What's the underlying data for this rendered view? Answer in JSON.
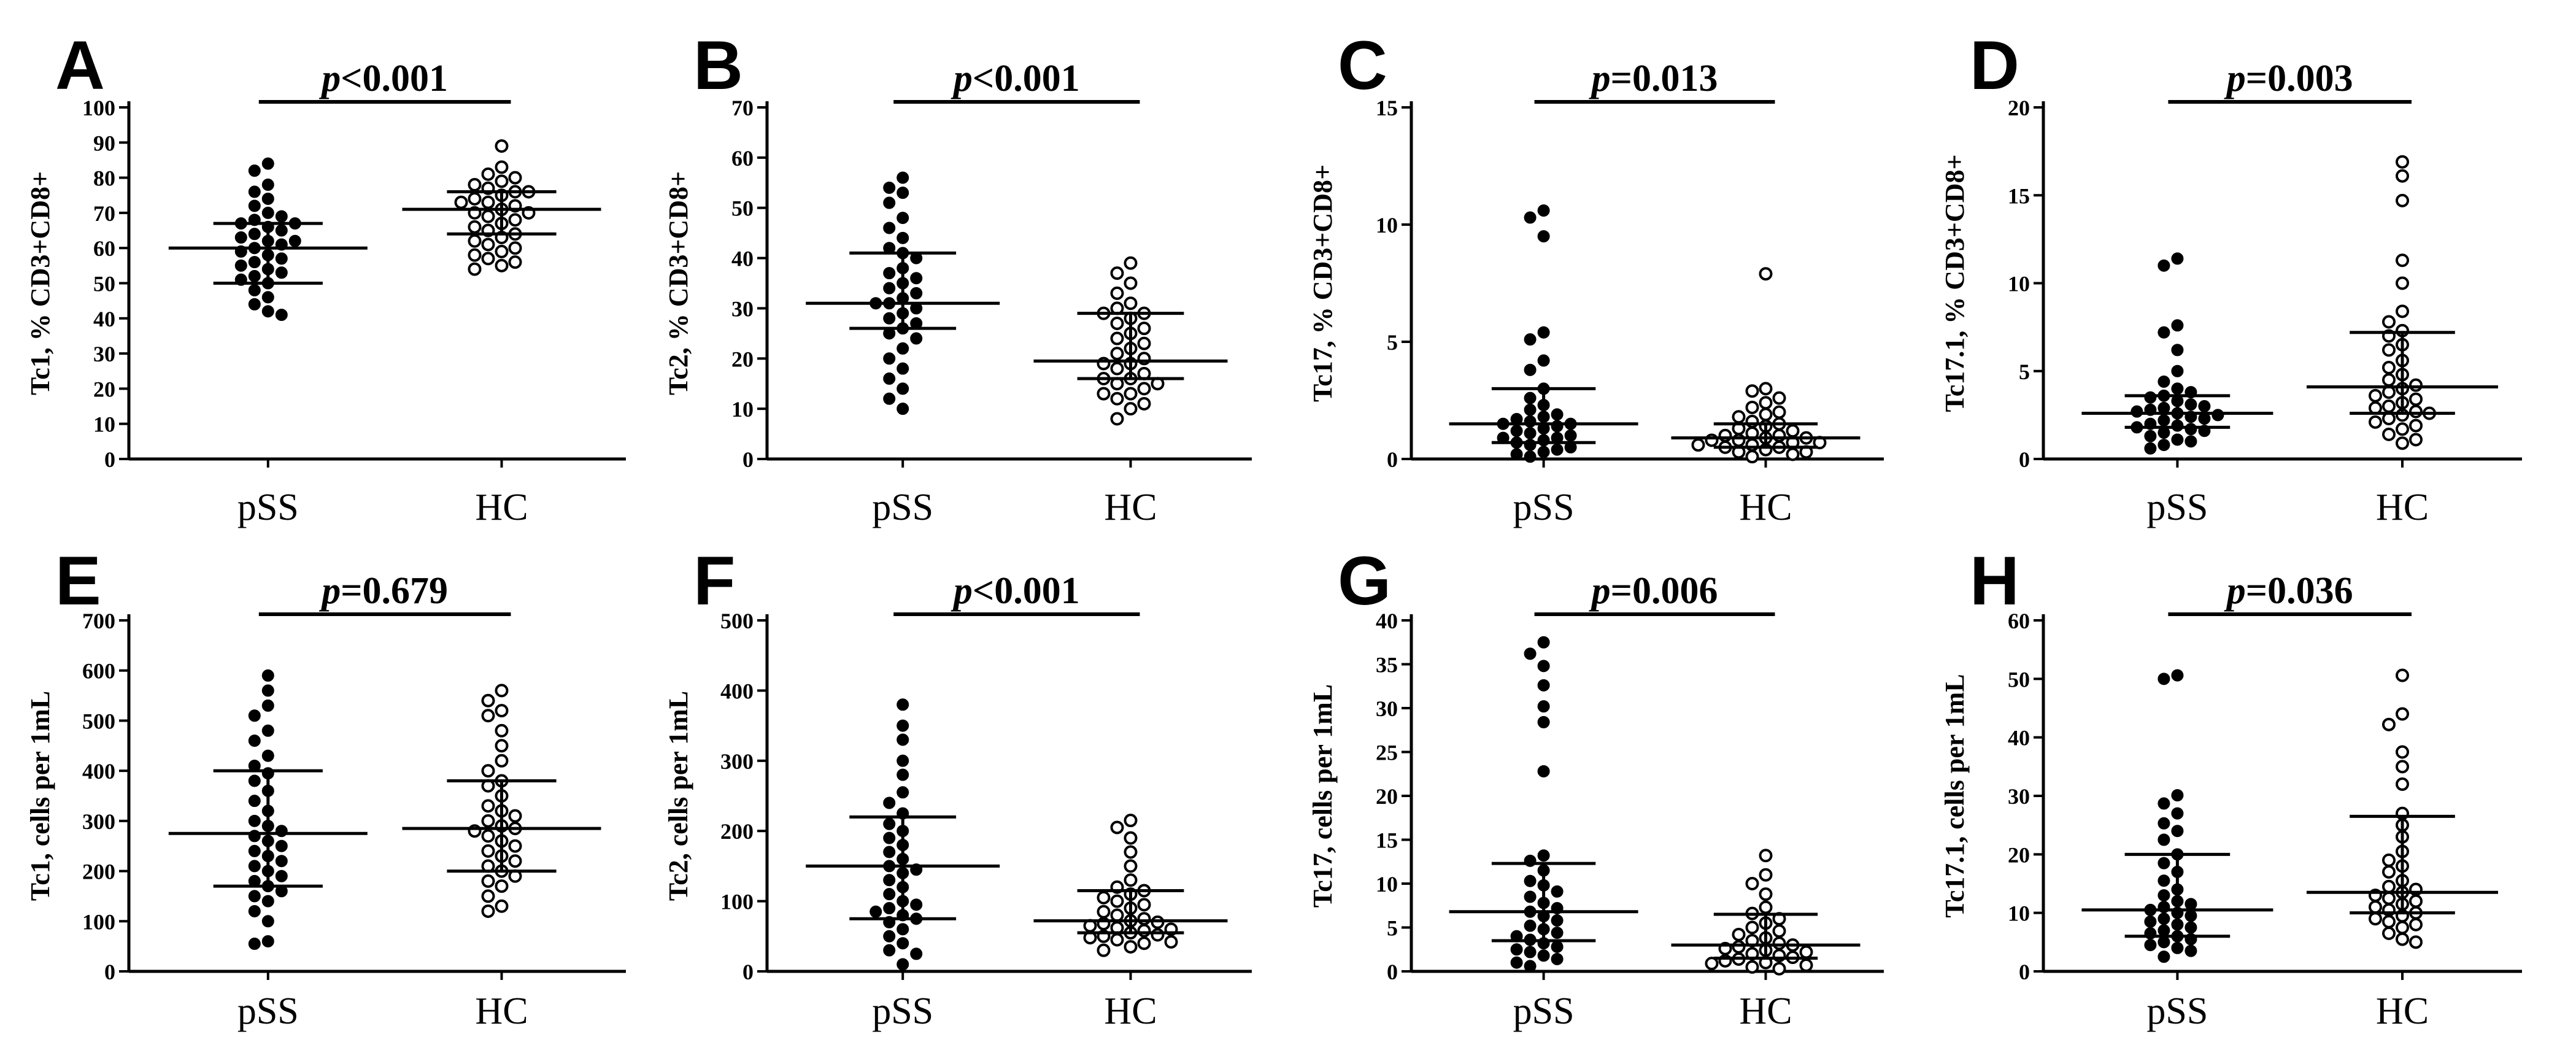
{
  "chart_data": [
    {
      "type": "scatter",
      "panel_label": "A",
      "ylabel": "Tc1, % CD3+CD8+",
      "ylim": [
        0,
        100
      ],
      "yticks": [
        0,
        10,
        20,
        30,
        40,
        50,
        60,
        70,
        80,
        90,
        100
      ],
      "categories": [
        "pSS",
        "HC"
      ],
      "p_prefix": "p",
      "p_rest": "<0.001",
      "series": [
        {
          "name": "pSS",
          "marker": "filled",
          "median": 60,
          "iqr": [
            50,
            67
          ],
          "values": [
            84,
            82,
            78,
            76,
            74,
            72,
            70,
            69,
            68,
            67,
            67,
            66,
            65,
            64,
            63,
            62,
            62,
            61,
            60,
            59,
            58,
            57,
            56,
            55,
            54,
            53,
            52,
            51,
            50,
            48,
            46,
            44,
            42,
            41
          ]
        },
        {
          "name": "HC",
          "marker": "open",
          "median": 71,
          "iqr": [
            64,
            76
          ],
          "values": [
            89,
            83,
            81,
            80,
            79,
            78,
            77,
            76,
            76,
            75,
            74,
            73,
            73,
            72,
            71,
            70,
            70,
            69,
            68,
            67,
            66,
            65,
            64,
            63,
            62,
            61,
            60,
            59,
            58,
            57,
            56,
            55,
            54
          ]
        }
      ]
    },
    {
      "type": "scatter",
      "panel_label": "B",
      "ylabel": "Tc2, % CD3+CD8+",
      "ylim": [
        0,
        70
      ],
      "yticks": [
        0,
        10,
        20,
        30,
        40,
        50,
        60,
        70
      ],
      "categories": [
        "pSS",
        "HC"
      ],
      "p_prefix": "p",
      "p_rest": "<0.001",
      "series": [
        {
          "name": "pSS",
          "marker": "filled",
          "median": 31,
          "iqr": [
            26,
            41
          ],
          "values": [
            56,
            54,
            53,
            51,
            48,
            46,
            44,
            42,
            41,
            40,
            38,
            37,
            36,
            35,
            34,
            33,
            32,
            31,
            31,
            30,
            29,
            28,
            27,
            26,
            25,
            24,
            22,
            20,
            18,
            16,
            14,
            12,
            10
          ]
        },
        {
          "name": "HC",
          "marker": "open",
          "median": 19.5,
          "iqr": [
            16,
            29
          ],
          "values": [
            39,
            37,
            35,
            33,
            31,
            30,
            29,
            29,
            28,
            27,
            26,
            25,
            24,
            23,
            22,
            21,
            20,
            19,
            19,
            18,
            17,
            16,
            16,
            15,
            15,
            14,
            13,
            13,
            12,
            11,
            10,
            8
          ]
        }
      ]
    },
    {
      "type": "scatter",
      "panel_label": "C",
      "ylabel": "Tc17, % CD3+CD8+",
      "ylim": [
        0,
        15
      ],
      "yticks": [
        0,
        5,
        10,
        15
      ],
      "categories": [
        "pSS",
        "HC"
      ],
      "p_prefix": "p",
      "p_rest": "=0.013",
      "series": [
        {
          "name": "pSS",
          "marker": "filled",
          "median": 1.5,
          "iqr": [
            0.7,
            3.0
          ],
          "values": [
            10.6,
            10.3,
            9.5,
            5.4,
            5.1,
            4.2,
            3.8,
            3.0,
            2.6,
            2.3,
            2.1,
            1.9,
            1.8,
            1.7,
            1.6,
            1.5,
            1.5,
            1.4,
            1.3,
            1.2,
            1.1,
            1.0,
            0.9,
            0.9,
            0.8,
            0.7,
            0.6,
            0.5,
            0.4,
            0.3,
            0.2,
            0.1
          ]
        },
        {
          "name": "HC",
          "marker": "open",
          "median": 0.9,
          "iqr": [
            0.5,
            1.5
          ],
          "values": [
            7.9,
            3.0,
            2.9,
            2.6,
            2.4,
            2.2,
            2.0,
            1.9,
            1.8,
            1.6,
            1.5,
            1.4,
            1.3,
            1.2,
            1.1,
            1.0,
            1.0,
            0.9,
            0.9,
            0.8,
            0.8,
            0.7,
            0.7,
            0.6,
            0.6,
            0.5,
            0.5,
            0.4,
            0.3,
            0.3,
            0.2,
            0.1
          ]
        }
      ]
    },
    {
      "type": "scatter",
      "panel_label": "D",
      "ylabel": "Tc17.1, % CD3+CD8+",
      "ylim": [
        0,
        20
      ],
      "yticks": [
        0,
        5,
        10,
        15,
        20
      ],
      "categories": [
        "pSS",
        "HC"
      ],
      "p_prefix": "p",
      "p_rest": "=0.003",
      "series": [
        {
          "name": "pSS",
          "marker": "filled",
          "median": 2.6,
          "iqr": [
            1.8,
            3.6
          ],
          "values": [
            11.4,
            11.0,
            7.6,
            7.2,
            6.2,
            5.0,
            4.4,
            4.0,
            3.8,
            3.6,
            3.5,
            3.3,
            3.1,
            3.0,
            2.9,
            2.8,
            2.7,
            2.6,
            2.5,
            2.4,
            2.3,
            2.2,
            2.0,
            1.9,
            1.8,
            1.7,
            1.6,
            1.5,
            1.3,
            1.1,
            1.0,
            0.8,
            0.6
          ]
        },
        {
          "name": "HC",
          "marker": "open",
          "median": 4.1,
          "iqr": [
            2.6,
            7.2
          ],
          "values": [
            16.9,
            16.1,
            14.7,
            11.3,
            10.0,
            8.4,
            7.8,
            7.3,
            7.0,
            6.5,
            6.2,
            5.6,
            5.2,
            4.8,
            4.5,
            4.2,
            4.0,
            3.8,
            3.6,
            3.4,
            3.2,
            3.0,
            2.9,
            2.7,
            2.6,
            2.5,
            2.3,
            2.1,
            1.9,
            1.7,
            1.4,
            1.1,
            0.9
          ]
        }
      ]
    },
    {
      "type": "scatter",
      "panel_label": "E",
      "ylabel": "Tc1, cells per 1mL",
      "ylim": [
        0,
        700
      ],
      "yticks": [
        0,
        100,
        200,
        300,
        400,
        500,
        600,
        700
      ],
      "categories": [
        "pSS",
        "HC"
      ],
      "p_prefix": "p",
      "p_rest": "=0.679",
      "series": [
        {
          "name": "pSS",
          "marker": "filled",
          "median": 275,
          "iqr": [
            170,
            400
          ],
          "values": [
            590,
            560,
            530,
            510,
            480,
            460,
            430,
            410,
            395,
            380,
            360,
            340,
            320,
            300,
            290,
            280,
            270,
            260,
            250,
            240,
            230,
            220,
            210,
            200,
            190,
            180,
            170,
            160,
            150,
            140,
            120,
            100,
            60,
            55
          ]
        },
        {
          "name": "HC",
          "marker": "open",
          "median": 285,
          "iqr": [
            200,
            380
          ],
          "values": [
            560,
            540,
            520,
            510,
            480,
            450,
            420,
            400,
            380,
            370,
            350,
            330,
            320,
            310,
            300,
            290,
            285,
            280,
            270,
            260,
            250,
            240,
            230,
            220,
            210,
            200,
            190,
            180,
            170,
            150,
            130,
            120
          ]
        }
      ]
    },
    {
      "type": "scatter",
      "panel_label": "F",
      "ylabel": "Tc2, cells per 1mL",
      "ylim": [
        0,
        500
      ],
      "yticks": [
        0,
        100,
        200,
        300,
        400,
        500
      ],
      "categories": [
        "pSS",
        "HC"
      ],
      "p_prefix": "p",
      "p_rest": "<0.001",
      "series": [
        {
          "name": "pSS",
          "marker": "filled",
          "median": 150,
          "iqr": [
            75,
            220
          ],
          "values": [
            380,
            350,
            330,
            300,
            280,
            255,
            240,
            225,
            210,
            200,
            190,
            180,
            170,
            160,
            150,
            145,
            140,
            130,
            120,
            110,
            100,
            95,
            90,
            85,
            80,
            75,
            70,
            60,
            50,
            40,
            30,
            25,
            10
          ]
        },
        {
          "name": "HC",
          "marker": "open",
          "median": 72,
          "iqr": [
            55,
            115
          ],
          "values": [
            215,
            205,
            190,
            170,
            150,
            130,
            120,
            115,
            110,
            105,
            100,
            95,
            90,
            85,
            80,
            75,
            72,
            70,
            68,
            65,
            62,
            60,
            58,
            55,
            52,
            50,
            48,
            45,
            42,
            40,
            35,
            30
          ]
        }
      ]
    },
    {
      "type": "scatter",
      "panel_label": "G",
      "ylabel": "Tc17, cells per 1mL",
      "ylim": [
        0,
        40
      ],
      "yticks": [
        0,
        5,
        10,
        15,
        20,
        25,
        30,
        35,
        40
      ],
      "categories": [
        "pSS",
        "HC"
      ],
      "p_prefix": "p",
      "p_rest": "=0.006",
      "series": [
        {
          "name": "pSS",
          "marker": "filled",
          "median": 6.8,
          "iqr": [
            3.5,
            12.3
          ],
          "values": [
            37.5,
            36.2,
            34.8,
            32.6,
            30.2,
            28.4,
            22.8,
            13.2,
            12.6,
            11.5,
            10.3,
            9.8,
            9.1,
            8.5,
            7.8,
            7.2,
            6.8,
            6.3,
            5.8,
            5.2,
            4.8,
            4.4,
            4.0,
            3.6,
            3.2,
            2.8,
            2.5,
            2.2,
            1.8,
            1.4,
            1.0,
            0.6
          ]
        },
        {
          "name": "HC",
          "marker": "open",
          "median": 3.0,
          "iqr": [
            1.5,
            6.5
          ],
          "values": [
            13.2,
            11.0,
            10.0,
            8.8,
            7.3,
            6.6,
            6.0,
            5.5,
            5.0,
            4.6,
            4.2,
            3.8,
            3.5,
            3.2,
            3.0,
            2.8,
            2.6,
            2.4,
            2.2,
            2.0,
            1.8,
            1.6,
            1.4,
            1.2,
            1.0,
            0.9,
            0.7,
            0.5,
            0.3
          ]
        }
      ]
    },
    {
      "type": "scatter",
      "panel_label": "H",
      "ylabel": "Tc17.1, cells per 1mL",
      "ylim": [
        0,
        60
      ],
      "yticks": [
        0,
        10,
        20,
        30,
        40,
        50,
        60
      ],
      "categories": [
        "pSS",
        "HC"
      ],
      "p_prefix": "p",
      "p_rest": "=0.036",
      "series": [
        {
          "name": "pSS",
          "marker": "filled",
          "median": 10.5,
          "iqr": [
            6.0,
            20.0
          ],
          "values": [
            50.6,
            50.0,
            30.1,
            28.7,
            27.0,
            25.3,
            24.0,
            22.5,
            20.0,
            18.5,
            17.0,
            15.5,
            14.0,
            13.0,
            12.0,
            11.5,
            11.0,
            10.5,
            10.0,
            9.5,
            9.0,
            8.5,
            8.0,
            7.5,
            7.0,
            6.5,
            6.0,
            5.5,
            5.0,
            4.5,
            4.0,
            3.5,
            2.5
          ]
        },
        {
          "name": "HC",
          "marker": "open",
          "median": 13.5,
          "iqr": [
            10.0,
            26.5
          ],
          "values": [
            50.6,
            44.0,
            42.2,
            37.5,
            35.0,
            32.0,
            27.0,
            25.0,
            23.0,
            20.5,
            19.0,
            18.0,
            17.0,
            15.5,
            14.5,
            14.0,
            13.5,
            13.0,
            12.5,
            12.0,
            11.5,
            11.0,
            10.5,
            10.0,
            9.5,
            9.0,
            8.5,
            8.0,
            7.5,
            6.5,
            5.5,
            5.0
          ]
        }
      ]
    }
  ]
}
